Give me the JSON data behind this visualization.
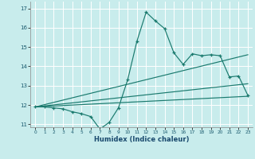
{
  "title": "",
  "xlabel": "Humidex (Indice chaleur)",
  "ylabel": "",
  "bg_color": "#c8ecec",
  "grid_color": "#ffffff",
  "line_color": "#1a7a6e",
  "xlim": [
    -0.5,
    23.5
  ],
  "ylim": [
    10.85,
    17.35
  ],
  "xticks": [
    0,
    1,
    2,
    3,
    4,
    5,
    6,
    7,
    8,
    9,
    10,
    11,
    12,
    13,
    14,
    15,
    16,
    17,
    18,
    19,
    20,
    21,
    22,
    23
  ],
  "yticks": [
    11,
    12,
    13,
    14,
    15,
    16,
    17
  ],
  "series": {
    "main": {
      "x": [
        0,
        1,
        2,
        3,
        4,
        5,
        6,
        7,
        8,
        9,
        10,
        11,
        12,
        13,
        14,
        15,
        16,
        17,
        18,
        19,
        20,
        21,
        22,
        23
      ],
      "y": [
        11.9,
        11.9,
        11.85,
        11.8,
        11.65,
        11.55,
        11.4,
        10.75,
        11.1,
        11.85,
        13.3,
        15.3,
        16.8,
        16.35,
        15.95,
        14.7,
        14.1,
        14.65,
        14.55,
        14.6,
        14.55,
        13.45,
        13.5,
        12.5
      ]
    },
    "trend1": {
      "x": [
        0,
        23
      ],
      "y": [
        11.9,
        13.1
      ]
    },
    "trend2": {
      "x": [
        0,
        23
      ],
      "y": [
        11.9,
        14.6
      ]
    },
    "trend3": {
      "x": [
        0,
        23
      ],
      "y": [
        11.9,
        12.45
      ]
    }
  }
}
